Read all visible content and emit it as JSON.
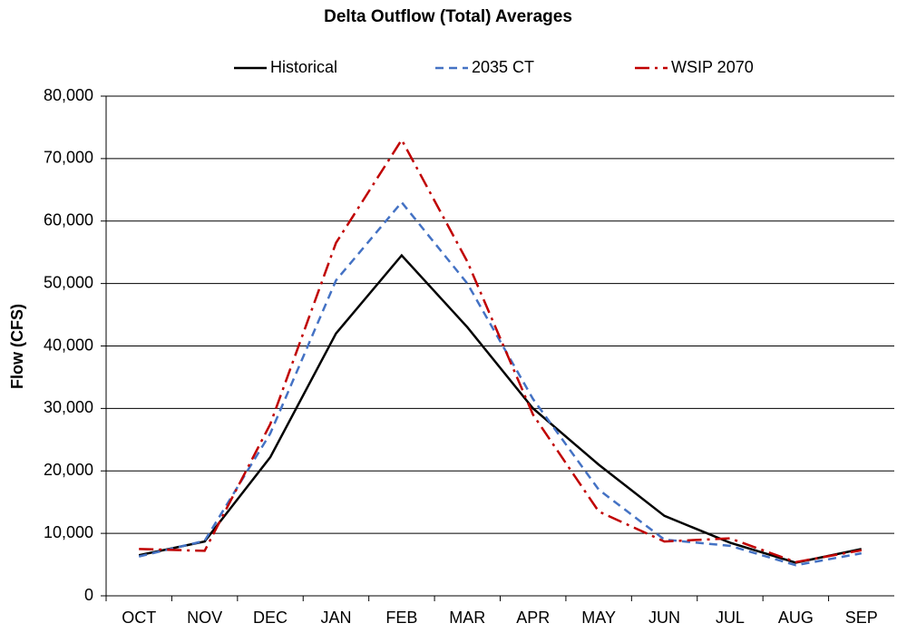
{
  "chart_data": {
    "type": "line",
    "title": "Delta Outflow (Total) Averages",
    "y_label": "Flow (CFS)",
    "categories": [
      "OCT",
      "NOV",
      "DEC",
      "JAN",
      "FEB",
      "MAR",
      "APR",
      "MAY",
      "JUN",
      "JUL",
      "AUG",
      "SEP"
    ],
    "series": [
      {
        "name": "Historical",
        "color": "#000000",
        "dash": "solid",
        "values": [
          6500,
          8700,
          22200,
          42000,
          54500,
          43000,
          30000,
          21000,
          12800,
          8500,
          5300,
          7500
        ]
      },
      {
        "name": "2035 CT",
        "color": "#4472c4",
        "dash": "dashed",
        "values": [
          6300,
          8800,
          26000,
          50500,
          63000,
          50000,
          31500,
          17000,
          9000,
          8000,
          4900,
          6800
        ]
      },
      {
        "name": "WSIP 2070",
        "color": "#c00000",
        "dash": "dashdot",
        "values": [
          7500,
          7200,
          27500,
          56500,
          73000,
          53500,
          29000,
          13500,
          8700,
          9200,
          5400,
          7300
        ]
      }
    ],
    "ylim": [
      0,
      80000
    ],
    "yticks": [
      0,
      {
        "value": 10000,
        "label": "10,000"
      },
      {
        "value": 20000,
        "label": "20,000"
      },
      {
        "value": 30000,
        "label": "30,000"
      },
      {
        "value": 40000,
        "label": "40,000"
      },
      {
        "value": 50000,
        "label": "50,000"
      },
      {
        "value": 60000,
        "label": "60,000"
      },
      {
        "value": 70000,
        "label": "70,000"
      },
      {
        "value": 80000,
        "label": "80,000"
      }
    ],
    "grid": true,
    "legend": "top"
  }
}
